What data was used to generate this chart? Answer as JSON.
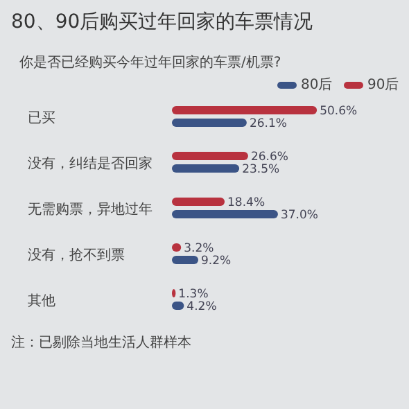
{
  "chart_data": {
    "type": "bar",
    "orientation": "horizontal",
    "title": "80、90后购买过年回家的车票情况",
    "subtitle": "你是否已经购买今年过年回家的车票/机票?",
    "categories": [
      "已买",
      "没有，纠结是否回家",
      "无需购票，异地过年",
      "没有，抢不到票",
      "其他"
    ],
    "series": [
      {
        "name": "90后",
        "color": "#b8323f",
        "values": [
          50.6,
          26.6,
          18.4,
          3.2,
          1.3
        ],
        "value_labels": [
          "50.6%",
          "26.6%",
          "18.4%",
          "3.2%",
          "1.3%"
        ]
      },
      {
        "name": "80后",
        "color": "#3b5486",
        "values": [
          26.1,
          23.5,
          37.0,
          9.2,
          4.2
        ],
        "value_labels": [
          "26.1%",
          "23.5%",
          "37.0%",
          "9.2%",
          "4.2%"
        ]
      }
    ],
    "legend": "top right",
    "annotations": [
      "注：已剔除当地生活人群样本"
    ]
  }
}
